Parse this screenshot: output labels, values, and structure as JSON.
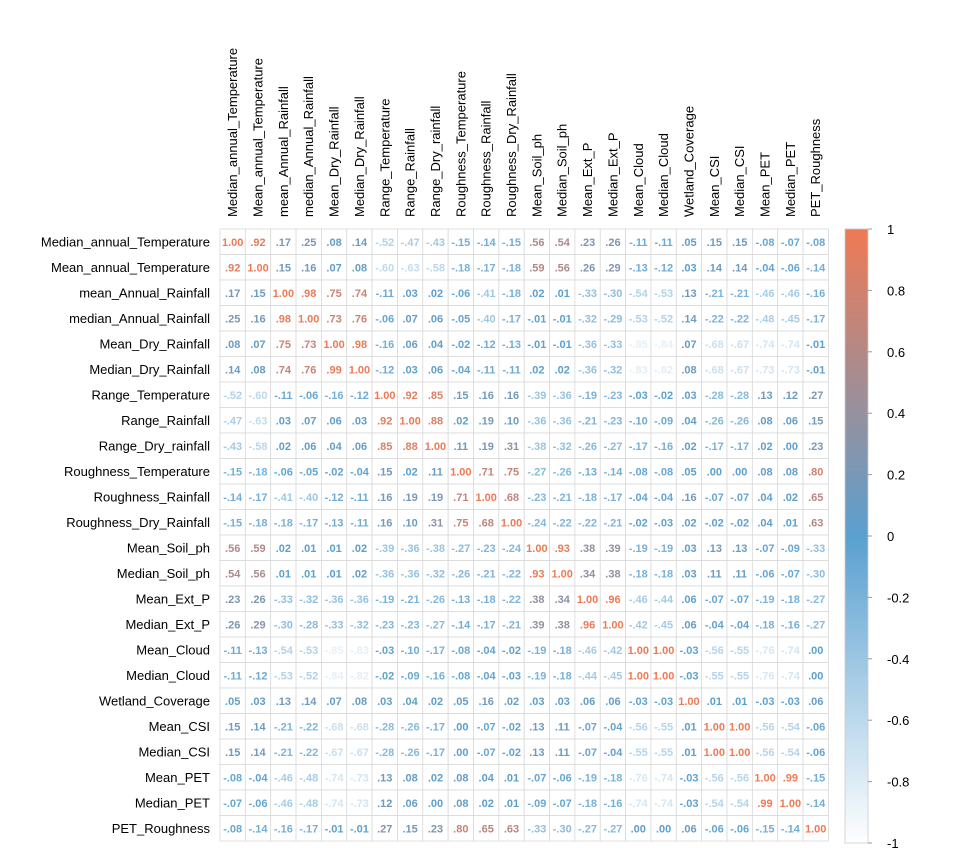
{
  "chart_data": {
    "type": "heatmap",
    "variables": [
      "Median_annual_Temperature",
      "Mean_annual_Temperature",
      "mean_Annual_Rainfall",
      "median_Annual_Rainfall",
      "Mean_Dry_Rainfall",
      "Median_Dry_Rainfall",
      "Range_Temperature",
      "Range_Rainfall",
      "Range_Dry_rainfall",
      "Roughness_Temperature",
      "Roughness_Rainfall",
      "Roughness_Dry_Rainfall",
      "Mean_Soil_ph",
      "Median_Soil_ph",
      "Mean_Ext_P",
      "Median_Ext_P",
      "Mean_Cloud",
      "Median_Cloud",
      "Wetland_Coverage",
      "Mean_CSI",
      "Median_CSI",
      "Mean_PET",
      "Median_PET",
      "PET_Roughness"
    ],
    "matrix": [
      [
        1.0,
        0.92,
        0.17,
        0.25,
        0.08,
        0.14,
        -0.52,
        -0.47,
        -0.43,
        -0.15,
        -0.14,
        -0.15,
        0.56,
        0.54,
        0.23,
        0.26,
        -0.11,
        -0.11,
        0.05,
        0.15,
        0.15,
        -0.08,
        -0.07,
        -0.08
      ],
      [
        0.92,
        1.0,
        0.15,
        0.16,
        0.07,
        0.08,
        -0.6,
        -0.63,
        -0.58,
        -0.18,
        -0.17,
        -0.18,
        0.59,
        0.56,
        0.26,
        0.29,
        -0.13,
        -0.12,
        0.03,
        0.14,
        0.14,
        -0.04,
        -0.06,
        -0.14
      ],
      [
        0.17,
        0.15,
        1.0,
        0.98,
        0.75,
        0.74,
        -0.11,
        0.03,
        0.02,
        -0.06,
        -0.41,
        -0.18,
        0.02,
        0.01,
        -0.33,
        -0.3,
        -0.54,
        -0.53,
        0.13,
        -0.21,
        -0.21,
        -0.46,
        -0.46,
        -0.16
      ],
      [
        0.25,
        0.16,
        0.98,
        1.0,
        0.73,
        0.76,
        -0.06,
        0.07,
        0.06,
        -0.05,
        -0.4,
        -0.17,
        -0.01,
        -0.01,
        -0.32,
        -0.29,
        -0.53,
        -0.52,
        0.14,
        -0.22,
        -0.22,
        -0.48,
        -0.45,
        -0.17
      ],
      [
        0.08,
        0.07,
        0.75,
        0.73,
        1.0,
        0.98,
        -0.16,
        0.06,
        0.04,
        -0.02,
        -0.12,
        -0.13,
        -0.01,
        -0.01,
        -0.36,
        -0.33,
        -0.85,
        -0.84,
        0.07,
        -0.68,
        -0.67,
        -0.74,
        -0.74,
        -0.01
      ],
      [
        0.14,
        0.08,
        0.74,
        0.76,
        0.99,
        1.0,
        -0.12,
        0.03,
        0.06,
        -0.04,
        -0.11,
        -0.11,
        0.02,
        0.02,
        -0.36,
        -0.32,
        -0.83,
        -0.82,
        0.08,
        -0.68,
        -0.67,
        -0.73,
        -0.73,
        -0.01
      ],
      [
        -0.52,
        -0.6,
        -0.11,
        -0.06,
        -0.16,
        -0.12,
        1.0,
        0.92,
        0.85,
        0.15,
        0.16,
        0.16,
        -0.39,
        -0.36,
        -0.19,
        -0.23,
        -0.03,
        -0.02,
        0.03,
        -0.28,
        -0.28,
        0.13,
        0.12,
        0.27
      ],
      [
        -0.47,
        -0.63,
        0.03,
        0.07,
        0.06,
        0.03,
        0.92,
        1.0,
        0.88,
        0.02,
        0.19,
        0.1,
        -0.36,
        -0.36,
        -0.21,
        -0.23,
        -0.1,
        -0.09,
        0.04,
        -0.26,
        -0.26,
        0.08,
        0.06,
        0.15
      ],
      [
        -0.43,
        -0.58,
        0.02,
        0.06,
        0.04,
        0.06,
        0.85,
        0.88,
        1.0,
        0.11,
        0.19,
        0.31,
        -0.38,
        -0.32,
        -0.26,
        -0.27,
        -0.17,
        -0.16,
        0.02,
        -0.17,
        -0.17,
        0.02,
        0.0,
        0.23
      ],
      [
        -0.15,
        -0.18,
        -0.06,
        -0.05,
        -0.02,
        -0.04,
        0.15,
        0.02,
        0.11,
        1.0,
        0.71,
        0.75,
        -0.27,
        -0.26,
        -0.13,
        -0.14,
        -0.08,
        -0.08,
        0.05,
        0.0,
        0.0,
        0.08,
        0.08,
        0.8
      ],
      [
        -0.14,
        -0.17,
        -0.41,
        -0.4,
        -0.12,
        -0.11,
        0.16,
        0.19,
        0.19,
        0.71,
        1.0,
        0.68,
        -0.23,
        -0.21,
        -0.18,
        -0.17,
        -0.04,
        -0.04,
        0.16,
        -0.07,
        -0.07,
        0.04,
        0.02,
        0.65
      ],
      [
        -0.15,
        -0.18,
        -0.18,
        -0.17,
        -0.13,
        -0.11,
        0.16,
        0.1,
        0.31,
        0.75,
        0.68,
        1.0,
        -0.24,
        -0.22,
        -0.22,
        -0.21,
        -0.02,
        -0.03,
        0.02,
        -0.02,
        -0.02,
        0.04,
        0.01,
        0.63
      ],
      [
        0.56,
        0.59,
        0.02,
        0.01,
        0.01,
        0.02,
        -0.39,
        -0.36,
        -0.38,
        -0.27,
        -0.23,
        -0.24,
        1.0,
        0.93,
        0.38,
        0.39,
        -0.19,
        -0.19,
        0.03,
        0.13,
        0.13,
        -0.07,
        -0.09,
        -0.33
      ],
      [
        0.54,
        0.56,
        0.01,
        0.01,
        0.01,
        0.02,
        -0.36,
        -0.36,
        -0.32,
        -0.26,
        -0.21,
        -0.22,
        0.93,
        1.0,
        0.34,
        0.38,
        -0.18,
        -0.18,
        0.03,
        0.11,
        0.11,
        -0.06,
        -0.07,
        -0.3
      ],
      [
        0.23,
        0.26,
        -0.33,
        -0.32,
        -0.36,
        -0.36,
        -0.19,
        -0.21,
        -0.26,
        -0.13,
        -0.18,
        -0.22,
        0.38,
        0.34,
        1.0,
        0.96,
        -0.46,
        -0.44,
        0.06,
        -0.07,
        -0.07,
        -0.19,
        -0.18,
        -0.27
      ],
      [
        0.26,
        0.29,
        -0.3,
        -0.28,
        -0.33,
        -0.32,
        -0.23,
        -0.23,
        -0.27,
        -0.14,
        -0.17,
        -0.21,
        0.39,
        0.38,
        0.96,
        1.0,
        -0.42,
        -0.45,
        0.06,
        -0.04,
        -0.04,
        -0.18,
        -0.16,
        -0.27
      ],
      [
        -0.11,
        -0.13,
        -0.54,
        -0.53,
        -0.85,
        -0.83,
        -0.03,
        -0.1,
        -0.17,
        -0.08,
        -0.04,
        -0.02,
        -0.19,
        -0.18,
        -0.46,
        -0.42,
        1.0,
        1.0,
        -0.03,
        -0.56,
        -0.55,
        -0.76,
        -0.74,
        0.0
      ],
      [
        -0.11,
        -0.12,
        -0.53,
        -0.52,
        -0.84,
        -0.82,
        -0.02,
        -0.09,
        -0.16,
        -0.08,
        -0.04,
        -0.03,
        -0.19,
        -0.18,
        -0.44,
        -0.45,
        1.0,
        1.0,
        -0.03,
        -0.55,
        -0.55,
        -0.76,
        -0.74,
        0.0
      ],
      [
        0.05,
        0.03,
        0.13,
        0.14,
        0.07,
        0.08,
        0.03,
        0.04,
        0.02,
        0.05,
        0.16,
        0.02,
        0.03,
        0.03,
        0.06,
        0.06,
        -0.03,
        -0.03,
        1.0,
        0.01,
        0.01,
        -0.03,
        -0.03,
        0.06
      ],
      [
        0.15,
        0.14,
        -0.21,
        -0.22,
        -0.68,
        -0.68,
        -0.28,
        -0.26,
        -0.17,
        0.0,
        -0.07,
        -0.02,
        0.13,
        0.11,
        -0.07,
        -0.04,
        -0.56,
        -0.55,
        0.01,
        1.0,
        1.0,
        -0.56,
        -0.54,
        -0.06
      ],
      [
        0.15,
        0.14,
        -0.21,
        -0.22,
        -0.67,
        -0.67,
        -0.28,
        -0.26,
        -0.17,
        0.0,
        -0.07,
        -0.02,
        0.13,
        0.11,
        -0.07,
        -0.04,
        -0.55,
        -0.55,
        0.01,
        1.0,
        1.0,
        -0.56,
        -0.54,
        -0.06
      ],
      [
        -0.08,
        -0.04,
        -0.46,
        -0.48,
        -0.74,
        -0.73,
        0.13,
        0.08,
        0.02,
        0.08,
        0.04,
        0.01,
        -0.07,
        -0.06,
        -0.19,
        -0.18,
        -0.76,
        -0.74,
        -0.03,
        -0.56,
        -0.56,
        1.0,
        0.99,
        -0.15
      ],
      [
        -0.07,
        -0.06,
        -0.46,
        -0.48,
        -0.74,
        -0.73,
        0.12,
        0.06,
        0.0,
        0.08,
        0.02,
        0.01,
        -0.09,
        -0.07,
        -0.18,
        -0.16,
        -0.74,
        -0.74,
        -0.03,
        -0.54,
        -0.54,
        0.99,
        1.0,
        -0.14
      ],
      [
        -0.08,
        -0.14,
        -0.16,
        -0.17,
        -0.01,
        -0.01,
        0.27,
        0.15,
        0.23,
        0.8,
        0.65,
        0.63,
        -0.33,
        -0.3,
        -0.27,
        -0.27,
        0.0,
        0.0,
        0.06,
        -0.06,
        -0.06,
        -0.15,
        -0.14,
        1.0
      ]
    ],
    "legend": {
      "position": "right",
      "range": [
        -1,
        1
      ],
      "ticks": [
        "1",
        "0.8",
        "0.6",
        "0.4",
        "0.2",
        "0",
        "-0.2",
        "-0.4",
        "-0.6",
        "-0.8",
        "-1"
      ],
      "colors": {
        "negative_end": "#ffffff",
        "mid": "#5aa0d0",
        "positive_end": "#ee7a55"
      }
    },
    "grid": true
  }
}
